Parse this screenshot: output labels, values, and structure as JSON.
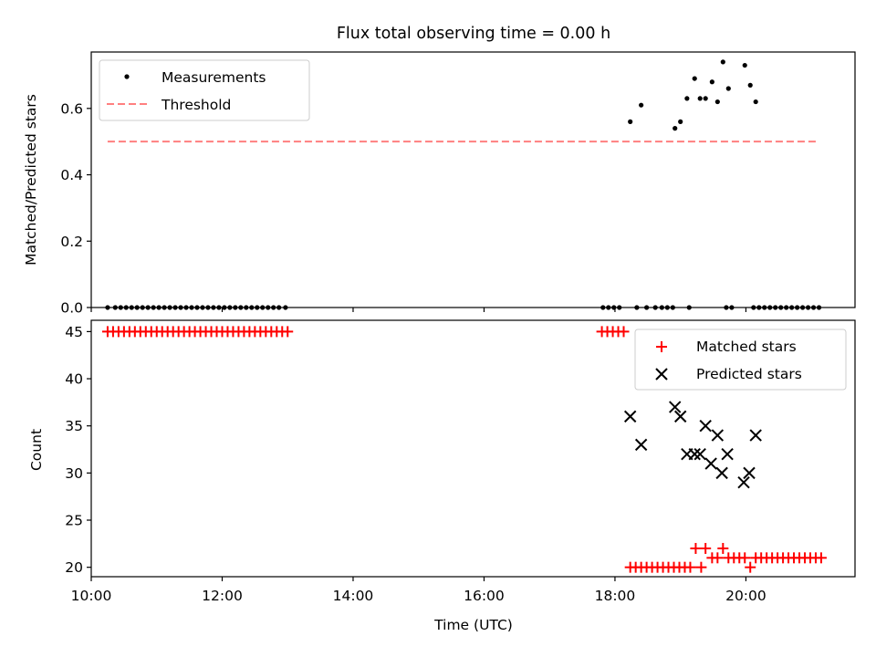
{
  "figure": {
    "title": "Flux total observing time = 0.00 h"
  },
  "chart_data": [
    {
      "type": "scatter",
      "panel": "top",
      "ylabel": "Matched/Predicted stars",
      "xlim": [
        "10:00",
        "21:40"
      ],
      "ylim": [
        0,
        0.77
      ],
      "yticks": [
        0.0,
        0.2,
        0.4,
        0.6
      ],
      "legend": {
        "placement": "top-left",
        "entries": [
          "Measurements",
          "Threshold"
        ]
      },
      "series": [
        {
          "name": "Measurements",
          "color": "#000000",
          "marker": "dot",
          "points": [
            [
              "10:15",
              0.0
            ],
            [
              "10:22",
              0.0
            ],
            [
              "10:27",
              0.0
            ],
            [
              "10:32",
              0.0
            ],
            [
              "10:37",
              0.0
            ],
            [
              "10:42",
              0.0
            ],
            [
              "10:47",
              0.0
            ],
            [
              "10:52",
              0.0
            ],
            [
              "10:57",
              0.0
            ],
            [
              "11:02",
              0.0
            ],
            [
              "11:07",
              0.0
            ],
            [
              "11:12",
              0.0
            ],
            [
              "11:17",
              0.0
            ],
            [
              "11:22",
              0.0
            ],
            [
              "11:27",
              0.0
            ],
            [
              "11:32",
              0.0
            ],
            [
              "11:37",
              0.0
            ],
            [
              "11:42",
              0.0
            ],
            [
              "11:47",
              0.0
            ],
            [
              "11:52",
              0.0
            ],
            [
              "11:57",
              0.0
            ],
            [
              "12:02",
              0.0
            ],
            [
              "12:07",
              0.0
            ],
            [
              "12:12",
              0.0
            ],
            [
              "12:17",
              0.0
            ],
            [
              "12:22",
              0.0
            ],
            [
              "12:27",
              0.0
            ],
            [
              "12:32",
              0.0
            ],
            [
              "12:37",
              0.0
            ],
            [
              "12:42",
              0.0
            ],
            [
              "12:47",
              0.0
            ],
            [
              "12:52",
              0.0
            ],
            [
              "12:58",
              0.0
            ],
            [
              "17:49",
              0.0
            ],
            [
              "17:54",
              0.0
            ],
            [
              "17:59",
              0.0
            ],
            [
              "18:04",
              0.0
            ],
            [
              "18:20",
              0.0
            ],
            [
              "18:29",
              0.0
            ],
            [
              "18:37",
              0.0
            ],
            [
              "18:43",
              0.0
            ],
            [
              "18:48",
              0.0
            ],
            [
              "18:53",
              0.0
            ],
            [
              "19:08",
              0.0
            ],
            [
              "19:42",
              0.0
            ],
            [
              "19:47",
              0.0
            ],
            [
              "20:07",
              0.0
            ],
            [
              "20:12",
              0.0
            ],
            [
              "20:17",
              0.0
            ],
            [
              "20:22",
              0.0
            ],
            [
              "20:27",
              0.0
            ],
            [
              "20:32",
              0.0
            ],
            [
              "20:37",
              0.0
            ],
            [
              "20:42",
              0.0
            ],
            [
              "20:47",
              0.0
            ],
            [
              "20:52",
              0.0
            ],
            [
              "20:57",
              0.0
            ],
            [
              "21:02",
              0.0
            ],
            [
              "21:07",
              0.0
            ],
            [
              "18:14",
              0.56
            ],
            [
              "18:24",
              0.61
            ],
            [
              "18:55",
              0.54
            ],
            [
              "19:00",
              0.56
            ],
            [
              "19:06",
              0.63
            ],
            [
              "19:13",
              0.69
            ],
            [
              "19:18",
              0.63
            ],
            [
              "19:23",
              0.63
            ],
            [
              "19:29",
              0.68
            ],
            [
              "19:34",
              0.62
            ],
            [
              "19:39",
              0.74
            ],
            [
              "19:44",
              0.66
            ],
            [
              "19:59",
              0.73
            ],
            [
              "20:04",
              0.67
            ],
            [
              "20:09",
              0.62
            ]
          ]
        },
        {
          "name": "Threshold",
          "color": "#ff7f7f",
          "line": "dashed",
          "points": [
            [
              "10:15",
              0.5
            ],
            [
              "21:07",
              0.5
            ]
          ]
        }
      ]
    },
    {
      "type": "scatter",
      "panel": "bottom",
      "xlabel": "Time (UTC)",
      "ylabel": "Count",
      "xlim": [
        "10:00",
        "21:40"
      ],
      "ylim": [
        19,
        46.2
      ],
      "xticks": [
        "10:00",
        "12:00",
        "14:00",
        "16:00",
        "18:00",
        "20:00"
      ],
      "yticks": [
        20,
        25,
        30,
        35,
        40,
        45
      ],
      "legend": {
        "placement": "top-right",
        "entries": [
          "Matched stars",
          "Predicted stars"
        ]
      },
      "series": [
        {
          "name": "Matched stars",
          "color": "#ff0000",
          "marker": "plus",
          "points": [
            [
              "10:15",
              45
            ],
            [
              "10:20",
              45
            ],
            [
              "10:25",
              45
            ],
            [
              "10:30",
              45
            ],
            [
              "10:35",
              45
            ],
            [
              "10:40",
              45
            ],
            [
              "10:45",
              45
            ],
            [
              "10:50",
              45
            ],
            [
              "10:55",
              45
            ],
            [
              "11:00",
              45
            ],
            [
              "11:05",
              45
            ],
            [
              "11:10",
              45
            ],
            [
              "11:15",
              45
            ],
            [
              "11:20",
              45
            ],
            [
              "11:25",
              45
            ],
            [
              "11:30",
              45
            ],
            [
              "11:35",
              45
            ],
            [
              "11:40",
              45
            ],
            [
              "11:45",
              45
            ],
            [
              "11:50",
              45
            ],
            [
              "11:55",
              45
            ],
            [
              "12:00",
              45
            ],
            [
              "12:05",
              45
            ],
            [
              "12:10",
              45
            ],
            [
              "12:15",
              45
            ],
            [
              "12:20",
              45
            ],
            [
              "12:25",
              45
            ],
            [
              "12:30",
              45
            ],
            [
              "12:35",
              45
            ],
            [
              "12:40",
              45
            ],
            [
              "12:45",
              45
            ],
            [
              "12:50",
              45
            ],
            [
              "12:55",
              45
            ],
            [
              "13:00",
              45
            ],
            [
              "17:48",
              45
            ],
            [
              "17:53",
              45
            ],
            [
              "17:58",
              45
            ],
            [
              "18:03",
              45
            ],
            [
              "18:08",
              45
            ],
            [
              "18:14",
              20
            ],
            [
              "18:19",
              20
            ],
            [
              "18:24",
              20
            ],
            [
              "18:29",
              20
            ],
            [
              "18:34",
              20
            ],
            [
              "18:39",
              20
            ],
            [
              "18:44",
              20
            ],
            [
              "18:49",
              20
            ],
            [
              "18:54",
              20
            ],
            [
              "18:59",
              20
            ],
            [
              "19:04",
              20
            ],
            [
              "19:09",
              20
            ],
            [
              "19:14",
              22
            ],
            [
              "19:19",
              20
            ],
            [
              "19:23",
              22
            ],
            [
              "19:29",
              21
            ],
            [
              "19:34",
              21
            ],
            [
              "19:39",
              22
            ],
            [
              "19:44",
              21
            ],
            [
              "19:49",
              21
            ],
            [
              "19:54",
              21
            ],
            [
              "19:59",
              21
            ],
            [
              "20:04",
              20
            ],
            [
              "20:09",
              21
            ],
            [
              "20:14",
              21
            ],
            [
              "20:19",
              21
            ],
            [
              "20:24",
              21
            ],
            [
              "20:29",
              21
            ],
            [
              "20:34",
              21
            ],
            [
              "20:39",
              21
            ],
            [
              "20:44",
              21
            ],
            [
              "20:49",
              21
            ],
            [
              "20:54",
              21
            ],
            [
              "20:59",
              21
            ],
            [
              "21:04",
              21
            ],
            [
              "21:09",
              21
            ]
          ]
        },
        {
          "name": "Predicted stars",
          "color": "#000000",
          "marker": "x",
          "points": [
            [
              "18:14",
              36
            ],
            [
              "18:24",
              33
            ],
            [
              "18:55",
              37
            ],
            [
              "19:00",
              36
            ],
            [
              "19:06",
              32
            ],
            [
              "19:13",
              32
            ],
            [
              "19:18",
              32
            ],
            [
              "19:23",
              35
            ],
            [
              "19:28",
              31
            ],
            [
              "19:34",
              34
            ],
            [
              "19:38",
              30
            ],
            [
              "19:43",
              32
            ],
            [
              "19:58",
              29
            ],
            [
              "20:03",
              30
            ],
            [
              "20:09",
              34
            ]
          ]
        }
      ]
    }
  ]
}
